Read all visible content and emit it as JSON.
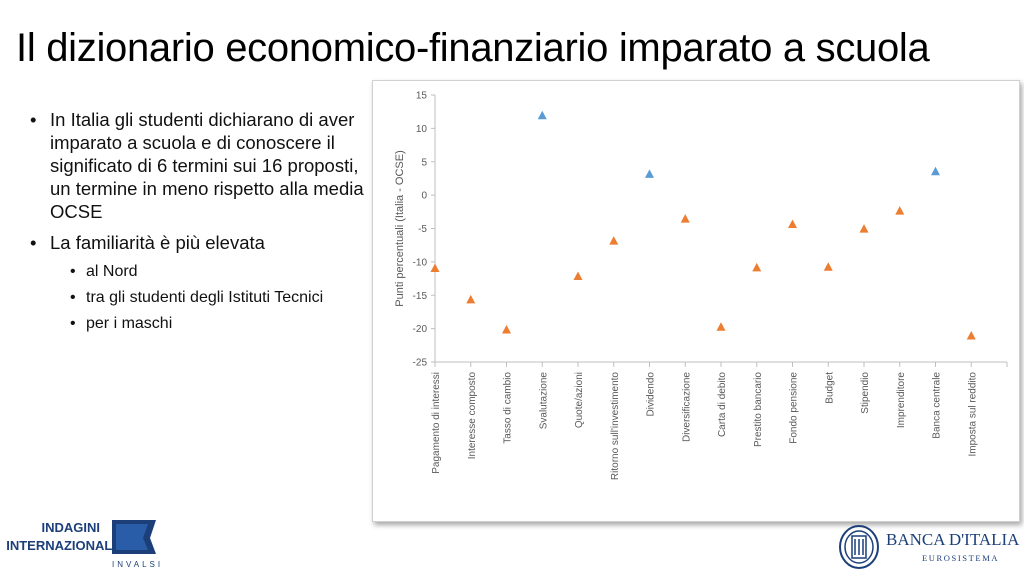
{
  "slide": {
    "title": "Il dizionario economico-finanziario imparato a scuola",
    "bullets": [
      "In Italia gli studenti dichiarano di aver imparato a scuola e di conoscere il significato di 6 termini sui 16 proposti, un termine in meno rispetto alla media OCSE",
      "La familiarità è più elevata"
    ],
    "sub_bullets": [
      "al Nord",
      "tra gli studenti degli Istituti Tecnici",
      "per i maschi"
    ]
  },
  "logos": {
    "left": {
      "line1": "INDAGINI",
      "line2": "INTERNAZIONALI",
      "line3": "INVALSI"
    },
    "right": {
      "line1": "BANCA D'ITALIA",
      "line2": "EUROSISTEMA"
    }
  },
  "colors": {
    "positive": "#5b9bd5",
    "negative": "#ed7d31",
    "axis": "#bfbfbf",
    "text": "#595959",
    "brand": "#1c3f7a"
  },
  "chart_data": {
    "type": "scatter",
    "marker": "triangle",
    "ylabel": "Punti percentuali (Italia - OCSE)",
    "xlabel": "",
    "ylim": [
      -25,
      15
    ],
    "yticks": [
      15,
      10,
      5,
      0,
      -5,
      -10,
      -15,
      -20,
      -25
    ],
    "grid": false,
    "categories": [
      "Pagamento di interessi",
      "Interesse composto",
      "Tasso di cambio",
      "Svalutazione",
      "Quote/azioni",
      "Ritorno sull'investimento",
      "Dividendo",
      "Diversificazione",
      "Carta di debito",
      "Prestito bancario",
      "Fondo pensione",
      "Budget",
      "Stipendio",
      "Imprenditore",
      "Banca centrale",
      "Imposta sul reddito"
    ],
    "values": [
      -11.0,
      -15.7,
      -20.2,
      11.9,
      -12.2,
      -6.9,
      3.1,
      -3.6,
      -19.8,
      -10.9,
      -4.4,
      -10.8,
      -5.1,
      -2.4,
      3.5,
      -21.1
    ]
  }
}
